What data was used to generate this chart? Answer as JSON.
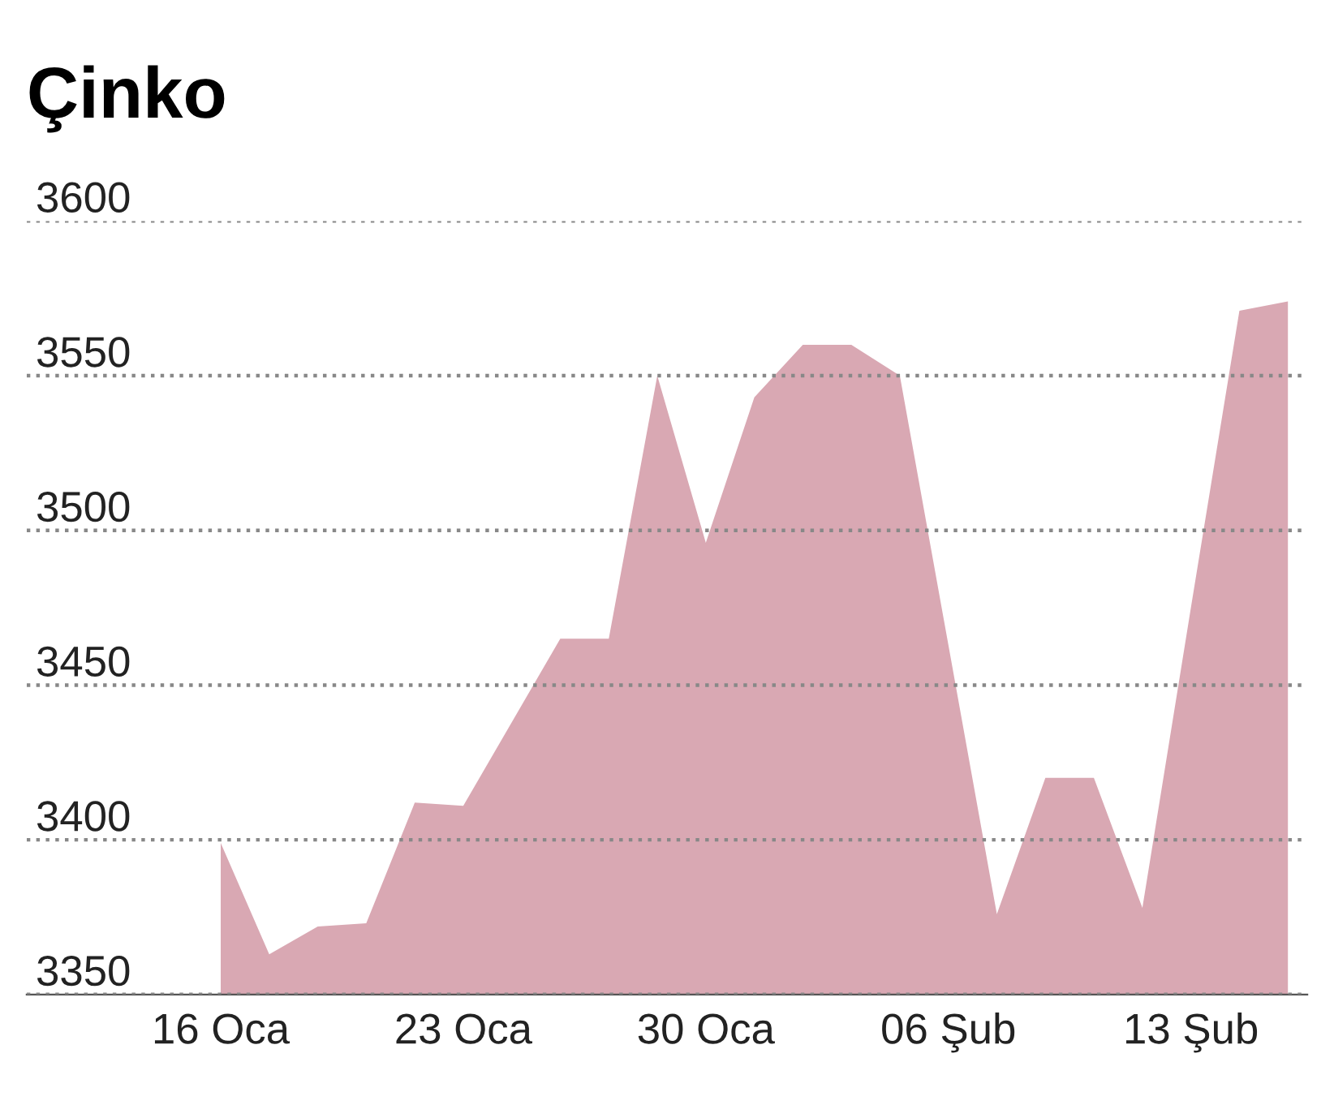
{
  "chart_data": {
    "type": "area",
    "title": "Çinko",
    "categories": [
      "16 Oca",
      null,
      null,
      null,
      null,
      "23 Oca",
      null,
      null,
      null,
      null,
      "30 Oca",
      null,
      null,
      null,
      null,
      "06 Şub",
      null,
      null,
      null,
      null,
      "13 Şub",
      null,
      null
    ],
    "values": [
      3399,
      3363,
      3372,
      3373,
      3412,
      3411,
      3438,
      3465,
      3465,
      3550,
      3496,
      3543,
      3560,
      3560,
      3550,
      3463,
      3376,
      3420,
      3420,
      3378,
      3475,
      3571,
      3574
    ],
    "color": "#d9a8b3",
    "ylim": [
      3350,
      3600
    ],
    "yticks": [
      3350,
      3400,
      3450,
      3500,
      3550,
      3600
    ],
    "grid": "y",
    "line_style": "dotted"
  }
}
